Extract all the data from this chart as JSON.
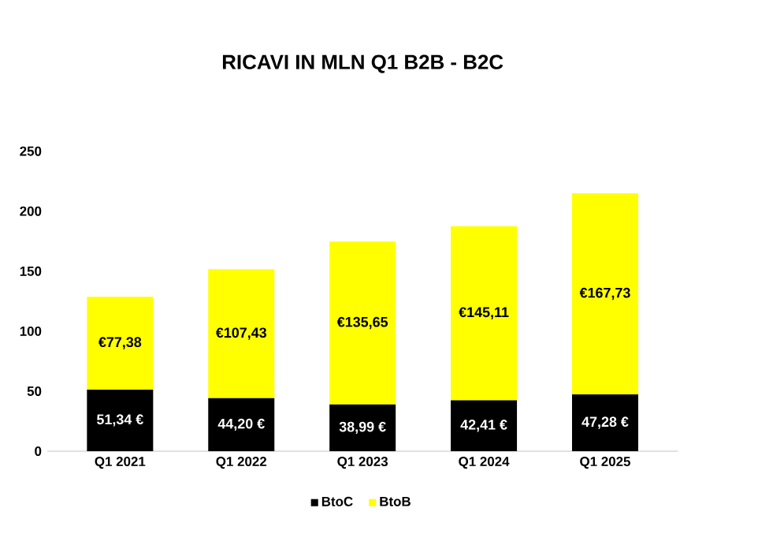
{
  "chart_data": {
    "type": "bar",
    "title": "RICAVI IN MLN Q1 B2B - B2C",
    "stacked": true,
    "categories": [
      "Q1 2021",
      "Q1 2022",
      "Q1 2023",
      "Q1 2024",
      "Q1 2025"
    ],
    "series": [
      {
        "name": "BtoC",
        "color": "#000000",
        "values": [
          51.34,
          44.2,
          38.99,
          42.41,
          47.28
        ],
        "value_labels": [
          "51,34 €",
          "44,20 €",
          "38,99 €",
          "42,41 €",
          "47,28 €"
        ]
      },
      {
        "name": "BtoB",
        "color": "#ffff00",
        "values": [
          77.38,
          107.43,
          135.65,
          145.11,
          167.73
        ],
        "value_labels": [
          "€77,38",
          "€107,43",
          "€135,65",
          "€145,11",
          "€167,73"
        ]
      }
    ],
    "ylim": [
      0,
      250
    ],
    "yticks": [
      0,
      50,
      100,
      150,
      200,
      250
    ],
    "grid": false,
    "legend": "bottom"
  }
}
